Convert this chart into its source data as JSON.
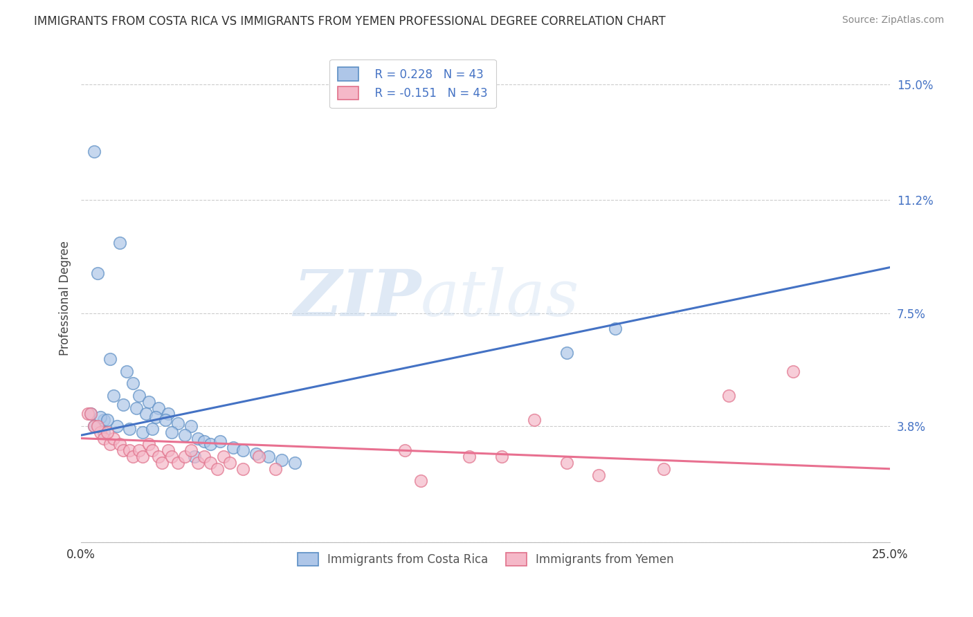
{
  "title": "IMMIGRANTS FROM COSTA RICA VS IMMIGRANTS FROM YEMEN PROFESSIONAL DEGREE CORRELATION CHART",
  "source": "Source: ZipAtlas.com",
  "ylabel": "Professional Degree",
  "xlim": [
    0.0,
    0.25
  ],
  "ylim": [
    0.0,
    0.16
  ],
  "ytick_vals": [
    0.0,
    0.038,
    0.075,
    0.112,
    0.15
  ],
  "ytick_labels": [
    "",
    "3.8%",
    "7.5%",
    "11.2%",
    "15.0%"
  ],
  "grid_color": "#cccccc",
  "background_color": "#ffffff",
  "costa_rica_color": "#aec6e8",
  "costa_rica_edge_color": "#5b8ec4",
  "costa_rica_line_color": "#4472c4",
  "yemen_color": "#f5b8c8",
  "yemen_edge_color": "#e0708a",
  "yemen_line_color": "#e87090",
  "watermark": "ZIPatlas",
  "legend_R_costa_rica": "R = 0.228",
  "legend_N_costa_rica": "N = 43",
  "legend_R_yemen": "R = -0.151",
  "legend_N_yemen": "N = 43",
  "costa_rica_x": [
    0.004,
    0.012,
    0.005,
    0.009,
    0.014,
    0.016,
    0.018,
    0.021,
    0.024,
    0.027,
    0.01,
    0.013,
    0.017,
    0.02,
    0.023,
    0.026,
    0.03,
    0.034,
    0.004,
    0.007,
    0.007,
    0.011,
    0.015,
    0.019,
    0.022,
    0.028,
    0.032,
    0.036,
    0.038,
    0.04,
    0.043,
    0.047,
    0.05,
    0.054,
    0.058,
    0.062,
    0.066,
    0.003,
    0.006,
    0.008,
    0.15,
    0.165,
    0.035
  ],
  "costa_rica_y": [
    0.128,
    0.098,
    0.088,
    0.06,
    0.056,
    0.052,
    0.048,
    0.046,
    0.044,
    0.042,
    0.048,
    0.045,
    0.044,
    0.042,
    0.041,
    0.04,
    0.039,
    0.038,
    0.038,
    0.036,
    0.04,
    0.038,
    0.037,
    0.036,
    0.037,
    0.036,
    0.035,
    0.034,
    0.033,
    0.032,
    0.033,
    0.031,
    0.03,
    0.029,
    0.028,
    0.027,
    0.026,
    0.042,
    0.041,
    0.04,
    0.062,
    0.07,
    0.028
  ],
  "yemen_x": [
    0.002,
    0.004,
    0.006,
    0.007,
    0.009,
    0.01,
    0.012,
    0.013,
    0.015,
    0.016,
    0.018,
    0.019,
    0.021,
    0.022,
    0.024,
    0.025,
    0.027,
    0.028,
    0.03,
    0.032,
    0.034,
    0.036,
    0.038,
    0.04,
    0.042,
    0.044,
    0.046,
    0.05,
    0.055,
    0.06,
    0.1,
    0.13,
    0.15,
    0.14,
    0.16,
    0.18,
    0.2,
    0.003,
    0.005,
    0.008,
    0.12,
    0.22,
    0.105
  ],
  "yemen_y": [
    0.042,
    0.038,
    0.036,
    0.034,
    0.032,
    0.034,
    0.032,
    0.03,
    0.03,
    0.028,
    0.03,
    0.028,
    0.032,
    0.03,
    0.028,
    0.026,
    0.03,
    0.028,
    0.026,
    0.028,
    0.03,
    0.026,
    0.028,
    0.026,
    0.024,
    0.028,
    0.026,
    0.024,
    0.028,
    0.024,
    0.03,
    0.028,
    0.026,
    0.04,
    0.022,
    0.024,
    0.048,
    0.042,
    0.038,
    0.036,
    0.028,
    0.056,
    0.02
  ]
}
